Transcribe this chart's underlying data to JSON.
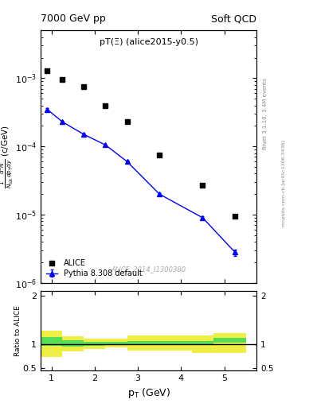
{
  "title_left": "7000 GeV pp",
  "title_right": "Soft QCD",
  "plot_label": "pT(Ξ) (alice2015-y0.5)",
  "watermark": "ALICE_2014_I1300380",
  "right_label_top": "Rivet 3.1.10, 3.4M events",
  "right_label_bottom": "mcplots.cern.ch [arXiv:1306.3436]",
  "alice_pt": [
    0.9,
    1.25,
    1.75,
    2.25,
    2.75,
    3.5,
    4.5,
    5.25
  ],
  "alice_y": [
    0.0013,
    0.00095,
    0.00075,
    0.0004,
    0.00023,
    7.5e-05,
    2.7e-05,
    9.5e-06
  ],
  "pythia_pt": [
    0.9,
    1.25,
    1.75,
    2.25,
    2.75,
    3.5,
    4.5,
    5.25
  ],
  "pythia_y": [
    0.00035,
    0.00023,
    0.00015,
    0.000105,
    6e-05,
    2e-05,
    9e-06,
    2.8e-06
  ],
  "pythia_yerr": [
    1e-05,
    5e-06,
    3e-06,
    2e-06,
    1.5e-06,
    8e-07,
    5e-07,
    3e-07
  ],
  "ratio_pt_edges": [
    0.75,
    1.25,
    1.75,
    2.25,
    2.75,
    3.25,
    4.25,
    4.75,
    5.5
  ],
  "ratio_green_lo": [
    0.96,
    0.95,
    0.96,
    0.97,
    0.97,
    0.97,
    0.97,
    1.02
  ],
  "ratio_green_hi": [
    1.14,
    1.07,
    1.05,
    1.05,
    1.06,
    1.06,
    1.06,
    1.12
  ],
  "ratio_yellow_lo": [
    0.73,
    0.84,
    0.89,
    0.92,
    0.87,
    0.87,
    0.82,
    0.82
  ],
  "ratio_yellow_hi": [
    1.27,
    1.16,
    1.11,
    1.11,
    1.18,
    1.18,
    1.18,
    1.22
  ],
  "xlim": [
    0.75,
    5.75
  ],
  "ylim_main": [
    1e-06,
    0.005
  ],
  "ylim_ratio": [
    0.45,
    2.1
  ],
  "ratio_yticks": [
    0.5,
    1.0,
    2.0
  ],
  "alice_color": "#000000",
  "alice_marker": "s",
  "alice_markersize": 4.5,
  "pythia_color": "#0000ff",
  "pythia_marker": "^",
  "pythia_markersize": 4.5,
  "green_color": "#55dd55",
  "yellow_color": "#eeee44",
  "xlabel": "p$_\\mathrm{T}$ (GeV)",
  "ylabel_main": "$\\frac{1}{N_\\mathrm{tot}} \\frac{d^2N}{dp_{\\mathrm{T}}dy}$ (c/GeV)",
  "ylabel_ratio": "Ratio to ALICE",
  "legend_alice": "ALICE",
  "legend_pythia": "Pythia 8.308 default"
}
